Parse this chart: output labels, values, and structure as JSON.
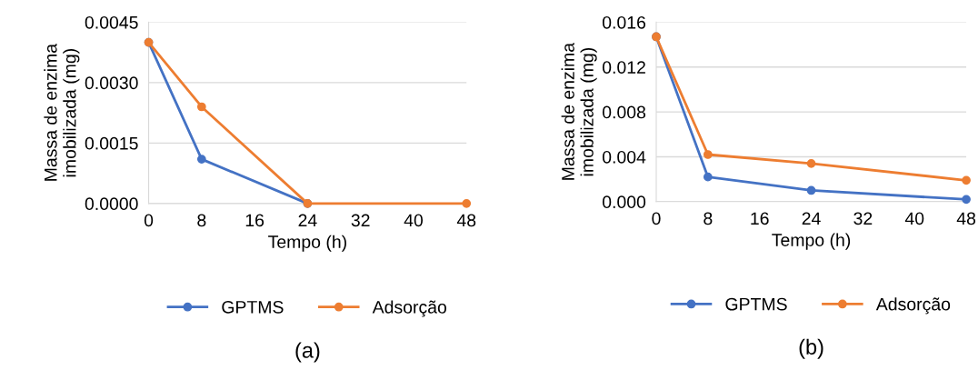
{
  "chart_data": [
    {
      "type": "line",
      "xlabel": "Tempo (h)",
      "ylabel": "Massa de enzima\nimobilizada (mg)",
      "x": [
        0,
        8,
        24,
        48
      ],
      "series": [
        {
          "name": "GPTMS",
          "color": "#4472c4",
          "values": [
            0.004,
            0.0011,
            0,
            null
          ]
        },
        {
          "name": "Adsorção",
          "color": "#ed7d31",
          "values": [
            0.004,
            0.0024,
            0,
            0
          ]
        }
      ],
      "xlim": [
        0,
        48
      ],
      "xticks": [
        0,
        8,
        16,
        24,
        32,
        40,
        48
      ],
      "ylim": [
        0,
        0.0045
      ],
      "yticks": [
        {
          "value": 0,
          "label": "0.0000"
        },
        {
          "value": 0.0015,
          "label": "0.0015"
        },
        {
          "value": 0.003,
          "label": "0.0030"
        },
        {
          "value": 0.0045,
          "label": "0.0045"
        }
      ],
      "grid": "y",
      "legend": "bottom",
      "marker": "circle",
      "line_style": "solid",
      "annotations": [
        "(a)"
      ]
    },
    {
      "type": "line",
      "xlabel": "Tempo (h)",
      "ylabel": "Massa de enzima\nimobilizada (mg)",
      "x": [
        0,
        8,
        24,
        48
      ],
      "series": [
        {
          "name": "GPTMS",
          "color": "#4472c4",
          "values": [
            0.0147,
            0.0022,
            0.001,
            0.0002
          ]
        },
        {
          "name": "Adsorção",
          "color": "#ed7d31",
          "values": [
            0.0147,
            0.0042,
            0.0034,
            0.0019
          ]
        }
      ],
      "xlim": [
        0,
        48
      ],
      "xticks": [
        0,
        8,
        16,
        24,
        32,
        40,
        48
      ],
      "ylim": [
        0,
        0.016
      ],
      "yticks": [
        {
          "value": 0,
          "label": "0.000"
        },
        {
          "value": 0.004,
          "label": "0.004"
        },
        {
          "value": 0.008,
          "label": "0.008"
        },
        {
          "value": 0.012,
          "label": "0.012"
        },
        {
          "value": 0.016,
          "label": "0.016"
        }
      ],
      "grid": "y",
      "legend": "bottom",
      "marker": "circle",
      "line_style": "solid",
      "annotations": [
        "(b)"
      ]
    }
  ]
}
